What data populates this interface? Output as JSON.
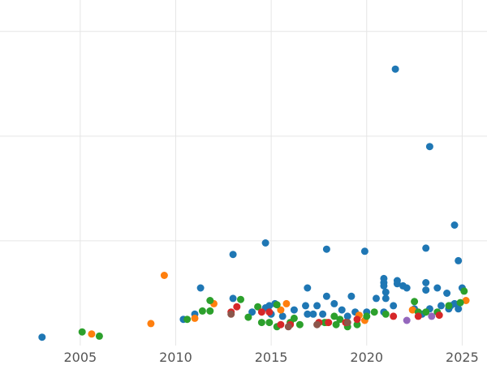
{
  "chart_data": {
    "type": "scatter",
    "title": "",
    "xlabel": "",
    "ylabel": "",
    "xlim": [
      2000.8,
      2026.3
    ],
    "ylim": [
      0,
      330
    ],
    "grid": true,
    "grid_x": [
      2005,
      2010,
      2015,
      2020,
      2025
    ],
    "grid_y": [
      100,
      200,
      300
    ],
    "x_ticks": [
      "2005",
      "2010",
      "2015",
      "2020",
      "2025"
    ],
    "y_ticks": [],
    "legend": "none",
    "series": [
      {
        "color": "#1f77b4",
        "points": [
          [
            2003.0,
            8
          ],
          [
            2010.4,
            25
          ],
          [
            2011.0,
            30
          ],
          [
            2011.3,
            55
          ],
          [
            2013.0,
            45
          ],
          [
            2013.0,
            87
          ],
          [
            2014.0,
            32
          ],
          [
            2014.7,
            36
          ],
          [
            2014.9,
            38
          ],
          [
            2015.0,
            30
          ],
          [
            2015.2,
            40
          ],
          [
            2015.6,
            28
          ],
          [
            2016.2,
            34
          ],
          [
            2016.8,
            38
          ],
          [
            2016.9,
            30
          ],
          [
            2016.9,
            55
          ],
          [
            2017.2,
            30
          ],
          [
            2017.4,
            38
          ],
          [
            2017.7,
            30
          ],
          [
            2017.9,
            47
          ],
          [
            2017.9,
            92
          ],
          [
            2018.3,
            40
          ],
          [
            2018.7,
            34
          ],
          [
            2019.0,
            28
          ],
          [
            2019.2,
            47
          ],
          [
            2019.4,
            32
          ],
          [
            2019.9,
            90
          ],
          [
            2020.0,
            32
          ],
          [
            2020.5,
            45
          ],
          [
            2020.9,
            64
          ],
          [
            2020.9,
            60
          ],
          [
            2020.9,
            57
          ],
          [
            2020.9,
            32
          ],
          [
            2021.0,
            51
          ],
          [
            2021.0,
            45
          ],
          [
            2021.4,
            38
          ],
          [
            2021.5,
            264
          ],
          [
            2021.6,
            62
          ],
          [
            2021.6,
            59
          ],
          [
            2021.9,
            57
          ],
          [
            2022.1,
            55
          ],
          [
            2022.5,
            35
          ],
          [
            2022.9,
            30
          ],
          [
            2023.1,
            60
          ],
          [
            2023.1,
            53
          ],
          [
            2023.1,
            93
          ],
          [
            2023.3,
            35
          ],
          [
            2023.3,
            190
          ],
          [
            2023.7,
            55
          ],
          [
            2023.9,
            38
          ],
          [
            2024.2,
            50
          ],
          [
            2024.3,
            35
          ],
          [
            2024.4,
            38
          ],
          [
            2024.6,
            40
          ],
          [
            2024.6,
            115
          ],
          [
            2024.8,
            35
          ],
          [
            2024.8,
            81
          ],
          [
            2025.0,
            55
          ],
          [
            2014.7,
            98
          ]
        ]
      },
      {
        "color": "#ff7f0e",
        "points": [
          [
            2005.6,
            11
          ],
          [
            2008.7,
            21
          ],
          [
            2009.4,
            67
          ],
          [
            2011.0,
            26
          ],
          [
            2012.0,
            40
          ],
          [
            2015.5,
            34
          ],
          [
            2015.8,
            40
          ],
          [
            2017.9,
            22
          ],
          [
            2019.6,
            29
          ],
          [
            2019.9,
            24
          ],
          [
            2022.4,
            34
          ],
          [
            2025.2,
            43
          ]
        ]
      },
      {
        "color": "#2ca02c",
        "points": [
          [
            2005.1,
            13
          ],
          [
            2006.0,
            9
          ],
          [
            2010.6,
            25
          ],
          [
            2011.4,
            33
          ],
          [
            2011.8,
            33
          ],
          [
            2011.8,
            43
          ],
          [
            2013.4,
            44
          ],
          [
            2013.8,
            27
          ],
          [
            2014.3,
            37
          ],
          [
            2014.5,
            22
          ],
          [
            2014.9,
            22
          ],
          [
            2015.3,
            18
          ],
          [
            2015.3,
            39
          ],
          [
            2016.2,
            26
          ],
          [
            2016.5,
            20
          ],
          [
            2017.8,
            22
          ],
          [
            2018.3,
            28
          ],
          [
            2018.4,
            20
          ],
          [
            2018.6,
            25
          ],
          [
            2019.0,
            18
          ],
          [
            2019.5,
            20
          ],
          [
            2020.0,
            28
          ],
          [
            2020.4,
            32
          ],
          [
            2021.0,
            30
          ],
          [
            2022.5,
            42
          ],
          [
            2022.7,
            32
          ],
          [
            2023.1,
            32
          ],
          [
            2023.7,
            32
          ],
          [
            2024.3,
            38
          ],
          [
            2024.9,
            41
          ],
          [
            2025.1,
            52
          ],
          [
            2016.0,
            22
          ]
        ]
      },
      {
        "color": "#d62728",
        "points": [
          [
            2012.9,
            32
          ],
          [
            2013.2,
            37
          ],
          [
            2014.5,
            32
          ],
          [
            2014.9,
            32
          ],
          [
            2015.5,
            20
          ],
          [
            2016.0,
            20
          ],
          [
            2017.5,
            22
          ],
          [
            2018.0,
            22
          ],
          [
            2018.9,
            22
          ],
          [
            2019.5,
            25
          ],
          [
            2021.4,
            28
          ],
          [
            2022.7,
            28
          ],
          [
            2023.8,
            29
          ]
        ]
      },
      {
        "color": "#8c564b",
        "points": [
          [
            2012.9,
            30
          ],
          [
            2015.9,
            18
          ],
          [
            2017.4,
            20
          ],
          [
            2019.0,
            22
          ]
        ]
      },
      {
        "color": "#9467bd",
        "points": [
          [
            2022.1,
            24
          ],
          [
            2023.4,
            28
          ]
        ]
      }
    ]
  }
}
